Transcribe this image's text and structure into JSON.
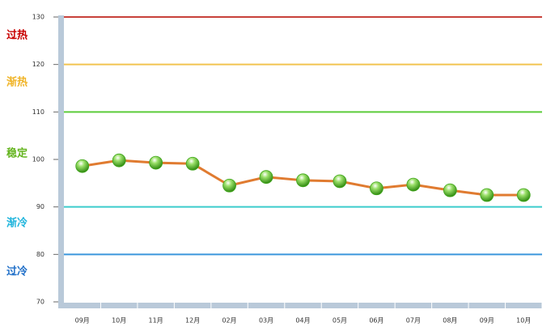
{
  "chart_data": {
    "type": "line",
    "categories": [
      "09月",
      "10月",
      "11月",
      "12月",
      "02月",
      "03月",
      "04月",
      "05月",
      "06月",
      "07月",
      "08月",
      "09月",
      "10月"
    ],
    "values": [
      98.6,
      99.8,
      99.3,
      99.1,
      94.5,
      96.3,
      95.6,
      95.4,
      93.9,
      94.7,
      93.5,
      92.5,
      92.5
    ],
    "color": "#e07b30",
    "marker_color": "#3fa51a",
    "ylim": [
      70,
      130
    ],
    "yticks": [
      70,
      80,
      90,
      100,
      110,
      120,
      130
    ],
    "thresholds": [
      {
        "value": 130,
        "color": "#c8413a"
      },
      {
        "value": 120,
        "color": "#f2c450"
      },
      {
        "value": 110,
        "color": "#5ccc3a"
      },
      {
        "value": 90,
        "color": "#3ccccc"
      },
      {
        "value": 80,
        "color": "#3a96dc"
      }
    ],
    "zones": [
      {
        "label": "过热",
        "color": "#c80000"
      },
      {
        "label": "渐热",
        "color": "#f0b428"
      },
      {
        "label": "稳定",
        "color": "#64b41e"
      },
      {
        "label": "渐冷",
        "color": "#1eb4dc"
      },
      {
        "label": "过冷",
        "color": "#1e6ec8"
      }
    ]
  }
}
